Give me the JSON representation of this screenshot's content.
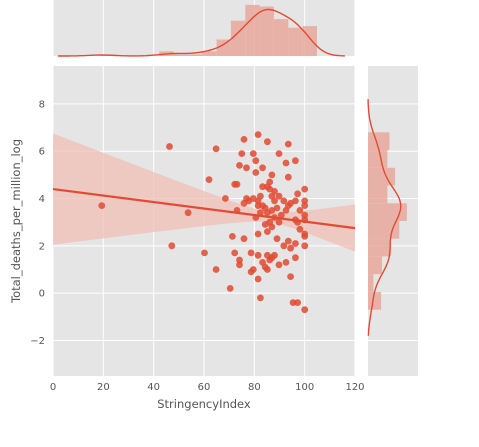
{
  "chart_data": {
    "type": "scatter",
    "style": "ggplot jointplot with regression",
    "xlabel": "StringencyIndex",
    "ylabel": "Total_deaths_per_million_log",
    "xlim": [
      0,
      120
    ],
    "ylim": [
      -3.5,
      9.6
    ],
    "x_ticks": [
      "0",
      "20",
      "40",
      "60",
      "80",
      "100",
      "120"
    ],
    "y_ticks": [
      "−2",
      "0",
      "2",
      "4",
      "6",
      "8"
    ],
    "grid": true,
    "colors": {
      "background": "#E5E5E5",
      "grid": "#FFFFFF",
      "points": "#E24A33",
      "line": "#E24A33",
      "band": "#F0BFB6",
      "hist": "#E8A497"
    },
    "points": [
      [
        19.4,
        3.7
      ],
      [
        46.3,
        6.2
      ],
      [
        47.2,
        2.0
      ],
      [
        53.7,
        3.4
      ],
      [
        60.2,
        1.7
      ],
      [
        62.0,
        4.8
      ],
      [
        64.8,
        6.1
      ],
      [
        64.8,
        1.0
      ],
      [
        68.5,
        4.0
      ],
      [
        70.4,
        0.2
      ],
      [
        71.3,
        2.4
      ],
      [
        72.2,
        4.6
      ],
      [
        72.2,
        1.7
      ],
      [
        73.1,
        4.6
      ],
      [
        73.1,
        3.5
      ],
      [
        74.1,
        5.4
      ],
      [
        74.1,
        1.4
      ],
      [
        74.1,
        1.2
      ],
      [
        75.0,
        5.9
      ],
      [
        75.9,
        6.5
      ],
      [
        75.9,
        3.8
      ],
      [
        75.9,
        2.3
      ],
      [
        76.9,
        5.3
      ],
      [
        76.9,
        4.0
      ],
      [
        77.8,
        3.9
      ],
      [
        78.7,
        1.7
      ],
      [
        78.7,
        0.9
      ],
      [
        79.6,
        5.9
      ],
      [
        79.6,
        4.0
      ],
      [
        79.6,
        1.0
      ],
      [
        80.6,
        5.6
      ],
      [
        80.6,
        5.1
      ],
      [
        80.6,
        3.2
      ],
      [
        81.5,
        6.7
      ],
      [
        81.5,
        3.9
      ],
      [
        81.5,
        3.7
      ],
      [
        81.5,
        2.5
      ],
      [
        81.5,
        1.6
      ],
      [
        81.5,
        0.6
      ],
      [
        82.4,
        4.1
      ],
      [
        82.4,
        3.4
      ],
      [
        82.4,
        -0.2
      ],
      [
        83.3,
        5.3
      ],
      [
        83.3,
        4.5
      ],
      [
        83.3,
        3.7
      ],
      [
        83.3,
        1.3
      ],
      [
        84.3,
        3.6
      ],
      [
        84.3,
        2.9
      ],
      [
        84.3,
        1.1
      ],
      [
        85.2,
        6.4
      ],
      [
        85.2,
        4.5
      ],
      [
        85.2,
        3.4
      ],
      [
        85.2,
        2.6
      ],
      [
        85.2,
        1.6
      ],
      [
        85.2,
        1.0
      ],
      [
        86.1,
        4.7
      ],
      [
        86.1,
        4.4
      ],
      [
        86.1,
        3.0
      ],
      [
        86.1,
        1.4
      ],
      [
        87.0,
        5.0
      ],
      [
        87.0,
        4.1
      ],
      [
        87.0,
        3.5
      ],
      [
        87.0,
        2.8
      ],
      [
        87.0,
        1.5
      ],
      [
        88.0,
        4.3
      ],
      [
        88.0,
        3.9
      ],
      [
        88.0,
        3.2
      ],
      [
        88.0,
        1.6
      ],
      [
        89.0,
        3.6
      ],
      [
        89.0,
        2.3
      ],
      [
        89.8,
        5.9
      ],
      [
        89.8,
        4.1
      ],
      [
        89.8,
        3.0
      ],
      [
        89.8,
        1.2
      ],
      [
        90.7,
        3.3
      ],
      [
        91.7,
        3.9
      ],
      [
        91.7,
        2.0
      ],
      [
        92.6,
        5.5
      ],
      [
        92.6,
        3.5
      ],
      [
        92.6,
        1.3
      ],
      [
        93.5,
        6.3
      ],
      [
        93.5,
        4.9
      ],
      [
        93.5,
        3.7
      ],
      [
        93.5,
        2.2
      ],
      [
        94.4,
        3.8
      ],
      [
        94.4,
        1.9
      ],
      [
        94.4,
        0.7
      ],
      [
        95.4,
        -0.4
      ],
      [
        96.3,
        5.6
      ],
      [
        96.3,
        3.9
      ],
      [
        96.3,
        3.1
      ],
      [
        96.3,
        2.1
      ],
      [
        96.3,
        1.5
      ],
      [
        97.2,
        4.2
      ],
      [
        97.2,
        3.0
      ],
      [
        97.2,
        -0.4
      ],
      [
        98.1,
        3.5
      ],
      [
        98.1,
        2.7
      ],
      [
        100.0,
        4.4
      ],
      [
        100.0,
        3.9
      ],
      [
        100.0,
        3.7
      ],
      [
        100.0,
        3.3
      ],
      [
        100.0,
        3.1
      ],
      [
        100.0,
        2.5
      ],
      [
        100.0,
        2.4
      ],
      [
        100.0,
        2.0
      ],
      [
        100.0,
        -0.7
      ]
    ],
    "regression": {
      "x_range": [
        0,
        120
      ],
      "y_at_start": 4.4,
      "y_at_end": 2.75,
      "ci_lower_start": 2.1,
      "ci_upper_start": 6.8,
      "ci_lower_end": 1.75,
      "ci_upper_end": 3.75
    },
    "marginal_x_hist": {
      "bin_edges": [
        19.4,
        25.1,
        30.8,
        36.5,
        42.2,
        47.9,
        53.6,
        59.3,
        65.0,
        70.7,
        76.4,
        82.1,
        87.8,
        93.5,
        99.2,
        104.9
      ],
      "density": [
        0.0012,
        0.0,
        0.0,
        0.0,
        0.0035,
        0.0012,
        0.0012,
        0.0035,
        0.0124,
        0.0265,
        0.0383,
        0.0371,
        0.0277,
        0.0212,
        0.0224
      ]
    },
    "marginal_y_hist": {
      "bin_edges": [
        -0.7,
        0.05,
        0.8,
        1.55,
        2.3,
        3.05,
        3.8,
        4.55,
        5.3,
        6.05,
        6.8
      ],
      "density": [
        0.094,
        0.039,
        0.101,
        0.165,
        0.225,
        0.28,
        0.14,
        0.195,
        0.14,
        0.155
      ]
    }
  }
}
